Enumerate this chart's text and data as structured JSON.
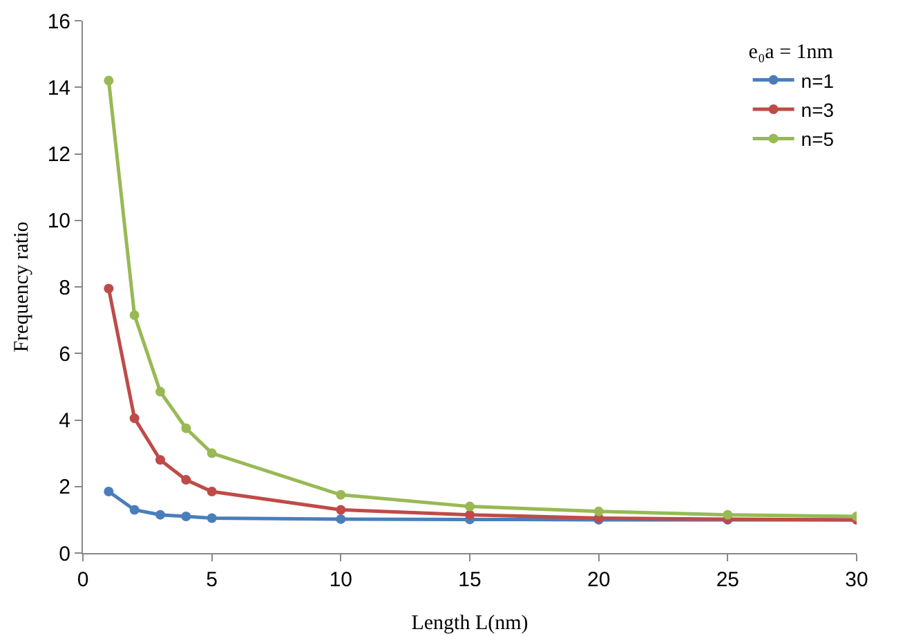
{
  "chart_data": {
    "type": "line",
    "xlabel": "Length L(nm)",
    "ylabel": "Frequency ratio",
    "legend_title": "e₀a = 1nm",
    "x": [
      1,
      2,
      3,
      4,
      5,
      10,
      15,
      20,
      25,
      30
    ],
    "series": [
      {
        "name": "n=1",
        "color": "#4a7ebb",
        "values": [
          1.85,
          1.3,
          1.15,
          1.1,
          1.05,
          1.02,
          1.01,
          1.0,
          1.0,
          1.0
        ]
      },
      {
        "name": "n=3",
        "color": "#be4b48",
        "values": [
          7.95,
          4.05,
          2.8,
          2.2,
          1.85,
          1.3,
          1.15,
          1.05,
          1.02,
          1.0
        ]
      },
      {
        "name": "n=5",
        "color": "#98b954",
        "values": [
          14.2,
          7.15,
          4.85,
          3.75,
          3.0,
          1.75,
          1.4,
          1.25,
          1.15,
          1.1
        ]
      }
    ],
    "xlim": [
      0,
      30
    ],
    "xticks": [
      0,
      5,
      10,
      15,
      20,
      25,
      30
    ],
    "ylim": [
      0,
      16
    ],
    "yticks": [
      0,
      2,
      4,
      6,
      8,
      10,
      12,
      14,
      16
    ],
    "grid": false,
    "legend": "top right",
    "marker": "circle",
    "line_style": "solid"
  }
}
